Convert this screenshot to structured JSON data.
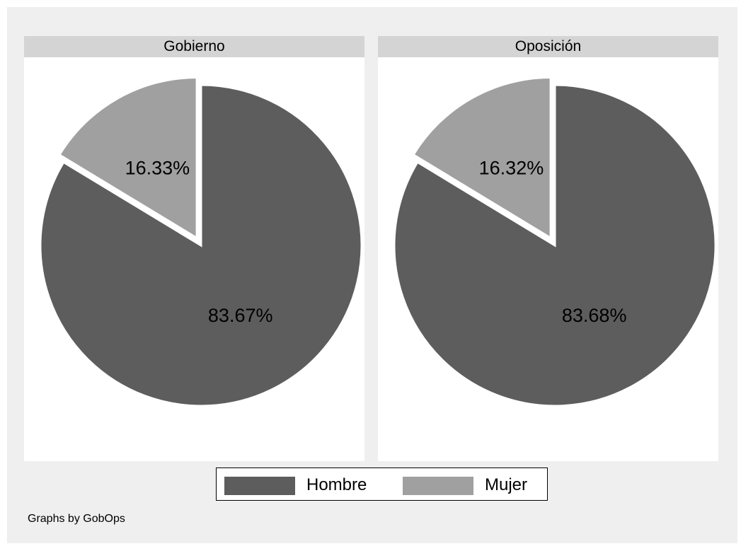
{
  "chart_data": [
    {
      "type": "pie",
      "title": "Gobierno",
      "categories": [
        "Hombre",
        "Mujer"
      ],
      "values": [
        83.67,
        16.33
      ],
      "labels": [
        "83.67%",
        "16.33%"
      ],
      "exploded": [
        "Mujer"
      ]
    },
    {
      "type": "pie",
      "title": "Oposición",
      "categories": [
        "Hombre",
        "Mujer"
      ],
      "values": [
        83.68,
        16.32
      ],
      "labels": [
        "83.68%",
        "16.32%"
      ],
      "exploded": [
        "Mujer"
      ]
    }
  ],
  "legend": {
    "position": "bottom",
    "items": [
      {
        "label": "Hombre",
        "color": "#5d5d5d"
      },
      {
        "label": "Mujer",
        "color": "#a0a0a0"
      }
    ]
  },
  "note": "Graphs by GobOps",
  "colors": {
    "hombre": "#5d5d5d",
    "mujer": "#a0a0a0",
    "panel_header": "#d4d4d4",
    "figure_background": "#efefef"
  }
}
